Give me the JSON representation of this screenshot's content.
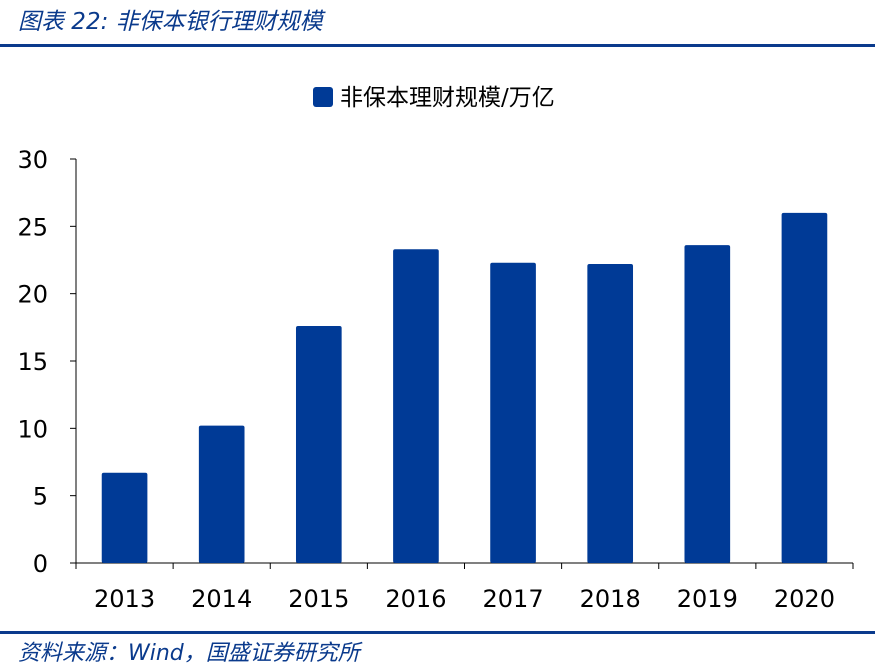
{
  "header": {
    "figure_title": "图表 22:  非保本银行理财规模"
  },
  "footer": {
    "source": "资料来源：Wind，国盛证券研究所"
  },
  "colors": {
    "accent": "#0a3a8c",
    "bar": "#003a96",
    "axis": "#000000"
  },
  "chart_data": {
    "type": "bar",
    "title": "",
    "xlabel": "",
    "ylabel": "",
    "categories": [
      "2013",
      "2014",
      "2015",
      "2016",
      "2017",
      "2018",
      "2019",
      "2020"
    ],
    "series": [
      {
        "name": "非保本理财规模/万亿",
        "values": [
          6.7,
          10.2,
          17.6,
          23.3,
          22.3,
          22.2,
          23.6,
          26.0
        ]
      }
    ],
    "ylim": [
      0,
      30
    ],
    "yticks": [
      0,
      5,
      10,
      15,
      20,
      25,
      30
    ],
    "grid": false,
    "legend_position": "top-center"
  }
}
